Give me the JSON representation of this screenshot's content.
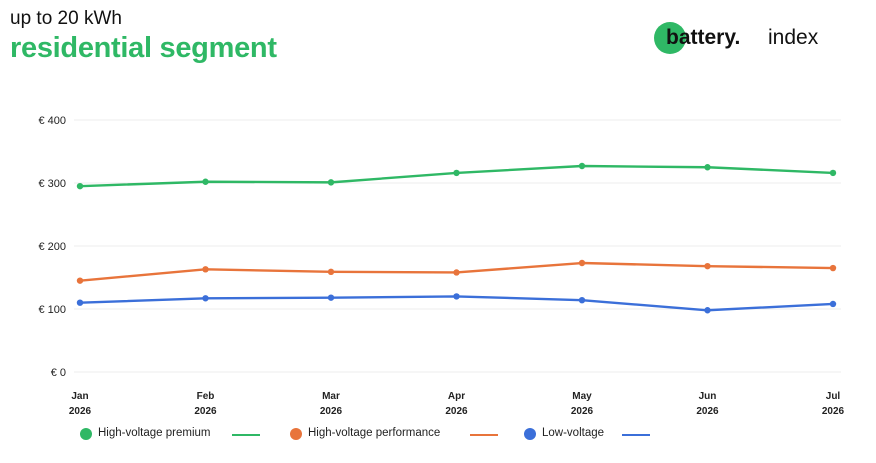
{
  "header": {
    "subtitle": "up to 20 kWh",
    "title": "residential segment"
  },
  "logo": {
    "word": "battery.",
    "index": "index"
  },
  "chart_data": {
    "type": "line",
    "categories": [
      "Jan 2026",
      "Feb 2026",
      "Mar 2026",
      "Apr 2026",
      "May 2026",
      "Jun 2026",
      "Jul 2026"
    ],
    "tick_month": [
      "Jan",
      "Feb",
      "Mar",
      "Apr",
      "May",
      "Jun",
      "Jul"
    ],
    "tick_year": [
      "2026",
      "2026",
      "2026",
      "2026",
      "2026",
      "2026",
      "2026"
    ],
    "ylim": [
      0,
      400
    ],
    "yticks": [
      0,
      100,
      200,
      300,
      400
    ],
    "ytick_labels": [
      "€ 0",
      "€ 100",
      "€ 200",
      "€ 300",
      "€ 400"
    ],
    "grid": true,
    "legend_position": "bottom",
    "series": [
      {
        "name": "High-voltage premium",
        "color": "#2fb865",
        "values": [
          295,
          302,
          301,
          316,
          327,
          325,
          316
        ]
      },
      {
        "name": "High-voltage performance",
        "color": "#e8743b",
        "values": [
          145,
          163,
          159,
          158,
          173,
          168,
          165
        ]
      },
      {
        "name": "Low-voltage",
        "color": "#3b6fd9",
        "values": [
          110,
          117,
          118,
          120,
          114,
          98,
          108
        ]
      }
    ]
  }
}
